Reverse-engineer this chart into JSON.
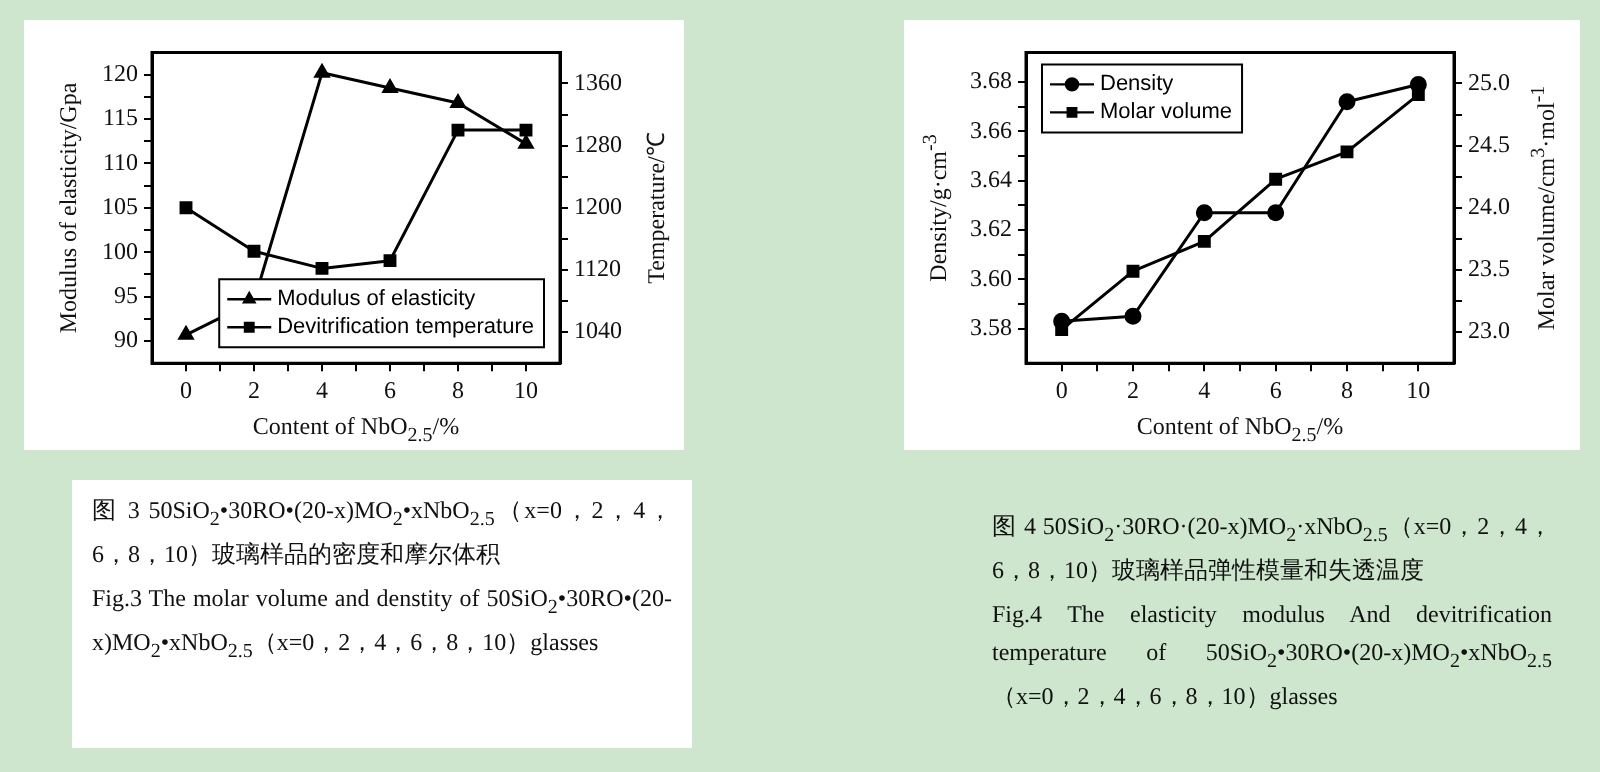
{
  "chart_data": [
    {
      "type": "line",
      "xlabel": "Content of NbO$_{2.5}$/%",
      "ylabel": "Modulus of elasticity/Gpa",
      "y2label": "Temperature/℃",
      "x": [
        0,
        2,
        4,
        6,
        8,
        10
      ],
      "xlim": [
        -1,
        11
      ],
      "xticks": [
        0,
        {
          "value": 1,
          "label": null
        },
        2,
        {
          "value": 3,
          "label": null
        },
        4,
        {
          "value": 5,
          "label": null
        },
        6,
        {
          "value": 7,
          "label": null
        },
        8,
        {
          "value": 9,
          "label": null
        },
        10
      ],
      "ylim": [
        87.5,
        122.5
      ],
      "yticks": [
        90,
        {
          "value": 92.5,
          "label": null
        },
        95,
        {
          "value": 97.5,
          "label": null
        },
        100,
        {
          "value": 102.5,
          "label": null
        },
        105,
        {
          "value": 107.5,
          "label": null
        },
        110,
        {
          "value": 112.5,
          "label": null
        },
        115,
        {
          "value": 117.5,
          "label": null
        },
        120
      ],
      "y2lim": [
        1000,
        1400
      ],
      "y2ticks": [
        1040,
        {
          "value": 1080,
          "label": null
        },
        1120,
        {
          "value": 1160,
          "label": null
        },
        1200,
        {
          "value": 1240,
          "label": null
        },
        1280,
        {
          "value": 1320,
          "label": null
        },
        1360
      ],
      "series": [
        {
          "name": "Modulus of elasticity",
          "color": "#000000",
          "marker": "triangle",
          "values": [
            90.7,
            94.5,
            120.2,
            118.5,
            116.8,
            112.2
          ]
        },
        {
          "name": "Devitrification temperature",
          "color": "#000000",
          "marker": "square",
          "axis": "y2",
          "values": [
            1200,
            1144,
            1122,
            1132,
            1300,
            1300
          ]
        }
      ],
      "legend": "bottom right",
      "grid": false,
      "annotations": [
        "图 3 50SiO$_{2}$•30RO•(20-x)MO$_{2}$•xNbO$_{2.5}$（x=0，2，4，6，8，10）玻璃样品的密度和摩尔体积",
        "Fig.3 The molar volume and denstity of 50SiO$_{2}$•30RO•(20-x)MO$_{2}$•xNbO$_{2.5}$（x=0，2，4，6，8，10）glasses"
      ]
    },
    {
      "type": "line",
      "xlabel": "Content of NbO$_{2.5}$/%",
      "ylabel": "Density/g·cm$^{-3}$",
      "y2label": "Molar volume/cm$^{3}$·mol$^{-1}$",
      "x": [
        0,
        2,
        4,
        6,
        8,
        10
      ],
      "xlim": [
        -1,
        11
      ],
      "xticks": [
        0,
        {
          "value": 1,
          "label": null
        },
        2,
        {
          "value": 3,
          "label": null
        },
        4,
        {
          "value": 5,
          "label": null
        },
        6,
        {
          "value": 7,
          "label": null
        },
        8,
        {
          "value": 9,
          "label": null
        },
        10
      ],
      "ylim": [
        3.566,
        3.692
      ],
      "yticks": [
        3.58,
        {
          "value": 3.59,
          "label": null
        },
        {
          "value": 3.6,
          "label": "3.60"
        },
        {
          "value": 3.61,
          "label": null
        },
        3.62,
        {
          "value": 3.63,
          "label": null
        },
        3.64,
        {
          "value": 3.65,
          "label": null
        },
        3.66,
        {
          "value": 3.67,
          "label": null
        },
        3.68
      ],
      "y2lim": [
        22.75,
        25.25
      ],
      "y2ticks": [
        {
          "value": 23,
          "label": "23.0"
        },
        {
          "value": 23.25,
          "label": null
        },
        23.5,
        {
          "value": 23.75,
          "label": null
        },
        {
          "value": 24,
          "label": "24.0"
        },
        {
          "value": 24.25,
          "label": null
        },
        24.5,
        {
          "value": 24.75,
          "label": null
        },
        {
          "value": 25,
          "label": "25.0"
        }
      ],
      "series": [
        {
          "name": "Density",
          "color": "#000000",
          "marker": "circle",
          "values": [
            3.583,
            3.585,
            3.627,
            3.627,
            3.672,
            3.679
          ]
        },
        {
          "name": "Molar volume",
          "color": "#000000",
          "marker": "square",
          "axis": "y2",
          "values": [
            23.02,
            23.49,
            23.73,
            24.23,
            24.45,
            24.91
          ]
        }
      ],
      "legend": "top left",
      "grid": false,
      "annotations": [
        "图 4 50SiO$_{2}$·30RO·(20-x)MO$_{2}$·xNbO$_{2.5}$（x=0，2，4，6，8，10）玻璃样品弹性模量和失透温度",
        "Fig.4 The elasticity  modulus And devitrification temperature of 50SiO$_{2}$•30RO•(20-x)MO$_{2}$•xNbO$_{2.5}$（x=0，2，4，6，8，10）glasses"
      ]
    }
  ]
}
